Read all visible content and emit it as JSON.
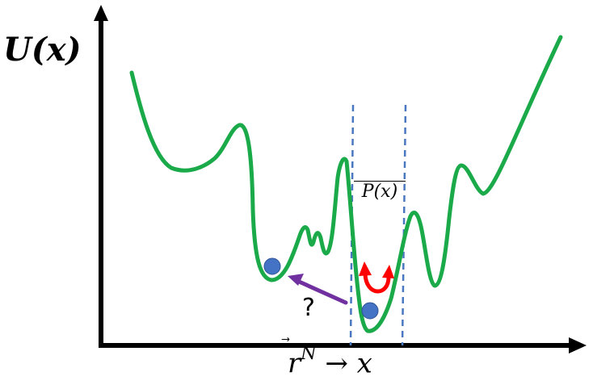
{
  "labels": {
    "y_axis": "U(x)",
    "x_axis_base": "r",
    "x_axis_sup": "N",
    "x_axis_arrow": "→",
    "x_axis_var": "x",
    "probability": "P(x)",
    "question": "?"
  },
  "colors": {
    "curve": "#1aaa4a",
    "axis": "#000000",
    "guide_lines": "#4a78c0",
    "particle": "#4472c4",
    "particle_edge": "#2f5597",
    "oscillation_arrow": "#ff0000",
    "transition_arrow": "#7030a0"
  },
  "icons": {
    "particle": "circle-marker",
    "oscillation": "curved-double-arrow",
    "transition": "arrow-left"
  }
}
